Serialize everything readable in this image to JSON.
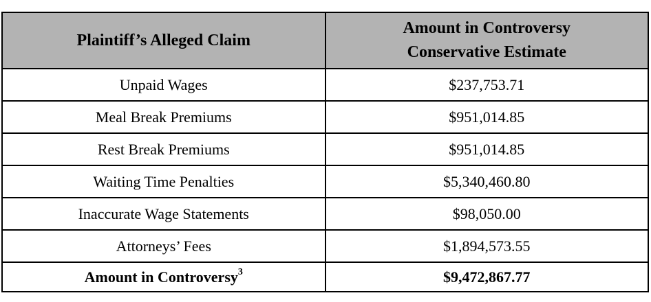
{
  "colors": {
    "header_bg": "#b3b3b3",
    "border": "#000000",
    "text": "#000000",
    "page_bg": "#ffffff"
  },
  "table": {
    "header": {
      "claim_col": "Plaintiff’s Alleged Claim",
      "amount_col_line1": "Amount in Controversy",
      "amount_col_line2": "Conservative Estimate"
    },
    "rows": [
      {
        "claim": "Unpaid Wages",
        "amount": "$237,753.71"
      },
      {
        "claim": "Meal Break Premiums",
        "amount": "$951,014.85"
      },
      {
        "claim": "Rest Break Premiums",
        "amount": "$951,014.85"
      },
      {
        "claim": "Waiting Time Penalties",
        "amount": "$5,340,460.80"
      },
      {
        "claim": "Inaccurate Wage Statements",
        "amount": "$98,050.00"
      },
      {
        "claim": "Attorneys’ Fees",
        "amount": "$1,894,573.55"
      }
    ],
    "total_row": {
      "claim": "Amount in Controversy",
      "footnote_superscript": "3",
      "amount": "$9,472,867.77"
    }
  }
}
